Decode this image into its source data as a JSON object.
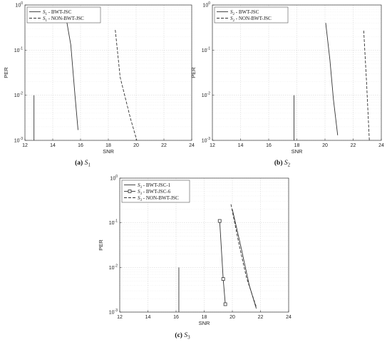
{
  "chart_data": [
    {
      "type": "line",
      "xlabel": "SNR",
      "ylabel": "PER",
      "xlim": [
        12,
        24
      ],
      "ylim": [
        0.001,
        1
      ],
      "yscale": "log",
      "x_ticks": [
        "12",
        "14",
        "16",
        "18",
        "20",
        "22",
        "24"
      ],
      "y_ticks": [
        {
          "base": "10",
          "exp": "0"
        },
        {
          "base": "10",
          "exp": "-1"
        },
        {
          "base": "10",
          "exp": "-2"
        },
        {
          "base": "10",
          "exp": "-3"
        }
      ],
      "grid": true,
      "legend_position": "top-left",
      "caption": {
        "label": "(a)",
        "sym": "S",
        "sub": "1"
      },
      "series": [
        {
          "legend": {
            "sym": "S",
            "sub": "1",
            "text": " - BWT-JSC"
          },
          "color": "#333333",
          "style": "solid",
          "marker": "none",
          "points": [
            [
              14.97,
              0.5
            ],
            [
              15.3,
              0.13
            ],
            [
              15.6,
              0.01
            ],
            [
              15.82,
              0.0017
            ]
          ]
        },
        {
          "legend": {
            "sym": "S",
            "sub": "1",
            "text": " - NON-BWT-JSC"
          },
          "color": "#333333",
          "style": "dashed",
          "marker": "none",
          "points": [
            [
              18.5,
              0.28
            ],
            [
              18.85,
              0.025
            ],
            [
              19.6,
              0.003
            ],
            [
              20.05,
              0.001
            ]
          ]
        }
      ],
      "vlines": [
        {
          "x": 12.65,
          "ymin": 0.001,
          "ymax": 0.01
        }
      ]
    },
    {
      "type": "line",
      "xlabel": "SNR",
      "ylabel": "PER",
      "xlim": [
        12,
        24
      ],
      "ylim": [
        0.001,
        1
      ],
      "yscale": "log",
      "x_ticks": [
        "12",
        "14",
        "16",
        "18",
        "20",
        "22",
        "24"
      ],
      "y_ticks": [
        {
          "base": "10",
          "exp": "0"
        },
        {
          "base": "10",
          "exp": "-1"
        },
        {
          "base": "10",
          "exp": "-2"
        },
        {
          "base": "10",
          "exp": "-3"
        }
      ],
      "grid": true,
      "legend_position": "top-left",
      "caption": {
        "label": "(b)",
        "sym": "S",
        "sub": "2"
      },
      "series": [
        {
          "legend": {
            "sym": "S",
            "sub": "2",
            "text": " - BWT-JSC"
          },
          "color": "#333333",
          "style": "solid",
          "marker": "none",
          "points": [
            [
              20.05,
              0.4
            ],
            [
              20.35,
              0.06
            ],
            [
              20.6,
              0.008
            ],
            [
              20.9,
              0.0013
            ]
          ]
        },
        {
          "legend": {
            "sym": "S",
            "sub": "2",
            "text": " - NON-BWT-JSC"
          },
          "color": "#333333",
          "style": "dashed",
          "marker": "none",
          "points": [
            [
              22.75,
              0.27
            ],
            [
              22.95,
              0.02
            ],
            [
              23.15,
              0.001
            ]
          ]
        }
      ],
      "vlines": [
        {
          "x": 17.8,
          "ymin": 0.001,
          "ymax": 0.01
        }
      ]
    },
    {
      "type": "line",
      "xlabel": "SNR",
      "ylabel": "PER",
      "xlim": [
        12,
        24
      ],
      "ylim": [
        0.001,
        1
      ],
      "yscale": "log",
      "x_ticks": [
        "12",
        "14",
        "16",
        "18",
        "20",
        "22",
        "24"
      ],
      "y_ticks": [
        {
          "base": "10",
          "exp": "0"
        },
        {
          "base": "10",
          "exp": "-1"
        },
        {
          "base": "10",
          "exp": "-2"
        },
        {
          "base": "10",
          "exp": "-3"
        }
      ],
      "grid": true,
      "legend_position": "top-left",
      "caption": {
        "label": "(c)",
        "sym": "S",
        "sub": "3"
      },
      "series": [
        {
          "legend": {
            "sym": "S",
            "sub": "3",
            "text": " - BWT-JSC-1"
          },
          "color": "#333333",
          "style": "solid",
          "marker": "none",
          "points": []
        },
        {
          "legend": {
            "sym": "S",
            "sub": "3",
            "text": " - BWT-JSC-6"
          },
          "color": "#333333",
          "style": "solid",
          "marker": "square",
          "points": [
            [
              19.1,
              0.11
            ],
            [
              19.35,
              0.0055
            ],
            [
              19.5,
              0.0015
            ]
          ]
        },
        {
          "legend": {
            "sym": "S",
            "sub": "3",
            "text": " - NON-BWT-JSC"
          },
          "color": "#333333",
          "style": "dashed",
          "marker": "none",
          "points": [
            [
              19.9,
              0.26
            ],
            [
              20.5,
              0.03
            ],
            [
              21.0,
              0.006
            ],
            [
              21.7,
              0.0013
            ]
          ]
        },
        {
          "legend": null,
          "color": "#333333",
          "style": "solid",
          "marker": "none",
          "points": [
            [
              20.0,
              0.2
            ],
            [
              20.6,
              0.03
            ],
            [
              21.2,
              0.004
            ],
            [
              21.7,
              0.0012
            ]
          ]
        }
      ],
      "vlines": [
        {
          "x": 16.2,
          "ymin": 0.001,
          "ymax": 0.01
        }
      ]
    }
  ]
}
